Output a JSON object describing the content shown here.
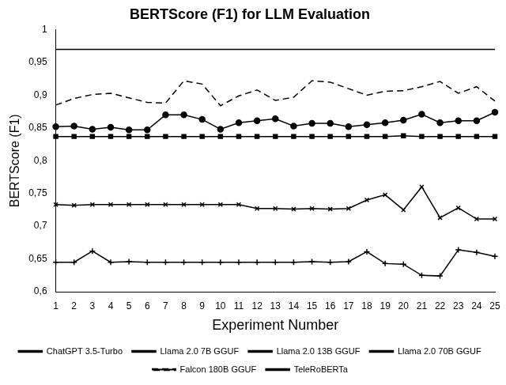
{
  "chart_data": {
    "type": "line",
    "title": "BERTScore (F1) for LLM Evaluation",
    "x_label": "Experiment Number",
    "y_label": "BERTScore (F1)",
    "categories": [
      "1",
      "2",
      "3",
      "4",
      "5",
      "6",
      "7",
      "8",
      "9",
      "10",
      "11",
      "12",
      "13",
      "14",
      "15",
      "16",
      "17",
      "18",
      "19",
      "20",
      "21",
      "22",
      "23",
      "24",
      "25"
    ],
    "ylim": [
      0.6,
      1
    ],
    "yticks": [
      {
        "value": 0.6,
        "label": "0,6"
      },
      {
        "value": 0.65,
        "label": "0,65"
      },
      {
        "value": 0.7,
        "label": "0,7"
      },
      {
        "value": 0.75,
        "label": "0,75"
      },
      {
        "value": 0.8,
        "label": "0,8"
      },
      {
        "value": 0.85,
        "label": "0,85"
      },
      {
        "value": 0.9,
        "label": "0,9"
      },
      {
        "value": 0.95,
        "label": "0,95"
      },
      1
    ],
    "grid": false,
    "legend": "bottom",
    "series": [
      {
        "name": "ChatGPT 3.5-Turbo",
        "color": "#000000",
        "marker": "square",
        "line_style": "solid",
        "values": [
          0.837,
          0.837,
          0.837,
          0.837,
          0.837,
          0.837,
          0.837,
          0.837,
          0.837,
          0.837,
          0.837,
          0.837,
          0.837,
          0.837,
          0.837,
          0.837,
          0.837,
          0.837,
          0.837,
          0.838,
          0.837,
          0.837,
          0.837,
          0.837,
          0.837
        ]
      },
      {
        "name": "Llama 2.0 7B GGUF",
        "color": "#000000",
        "marker": "plus",
        "line_style": "solid",
        "values": [
          0.645,
          0.645,
          0.662,
          0.645,
          0.646,
          0.645,
          0.645,
          0.645,
          0.645,
          0.645,
          0.645,
          0.645,
          0.645,
          0.645,
          0.646,
          0.645,
          0.646,
          0.661,
          0.643,
          0.642,
          0.625,
          0.624,
          0.664,
          0.66,
          0.654
        ]
      },
      {
        "name": "Llama 2.0 13B GGUF",
        "color": "#000000",
        "marker": "x",
        "line_style": "solid",
        "values": [
          0.733,
          0.732,
          0.733,
          0.733,
          0.733,
          0.733,
          0.733,
          0.733,
          0.733,
          0.733,
          0.733,
          0.727,
          0.727,
          0.726,
          0.727,
          0.726,
          0.727,
          0.74,
          0.748,
          0.725,
          0.76,
          0.713,
          0.728,
          0.711,
          0.711
        ]
      },
      {
        "name": "Llama 2.0 70B GGUF",
        "color": "#000000",
        "marker": "circle",
        "line_style": "solid",
        "values": [
          0.852,
          0.853,
          0.848,
          0.851,
          0.847,
          0.847,
          0.87,
          0.87,
          0.863,
          0.848,
          0.858,
          0.861,
          0.864,
          0.853,
          0.857,
          0.857,
          0.852,
          0.855,
          0.858,
          0.862,
          0.871,
          0.858,
          0.861,
          0.861,
          0.874
        ]
      },
      {
        "name": "Falcon 180B GGUF",
        "color": "#000000",
        "marker": "none",
        "line_style": "dashed",
        "values": [
          0.885,
          0.895,
          0.901,
          0.903,
          0.896,
          0.889,
          0.888,
          0.922,
          0.917,
          0.884,
          0.899,
          0.908,
          0.892,
          0.897,
          0.922,
          0.92,
          0.91,
          0.9,
          0.906,
          0.907,
          0.913,
          0.921,
          0.903,
          0.913,
          0.891
        ]
      },
      {
        "name": "TeleRoBERTa",
        "color": "#000000",
        "marker": "none",
        "line_style": "solid",
        "values": [
          0.97,
          0.97,
          0.97,
          0.97,
          0.97,
          0.97,
          0.97,
          0.97,
          0.97,
          0.97,
          0.97,
          0.97,
          0.97,
          0.97,
          0.97,
          0.97,
          0.97,
          0.97,
          0.97,
          0.97,
          0.97,
          0.97,
          0.97,
          0.97,
          0.97
        ]
      }
    ]
  }
}
